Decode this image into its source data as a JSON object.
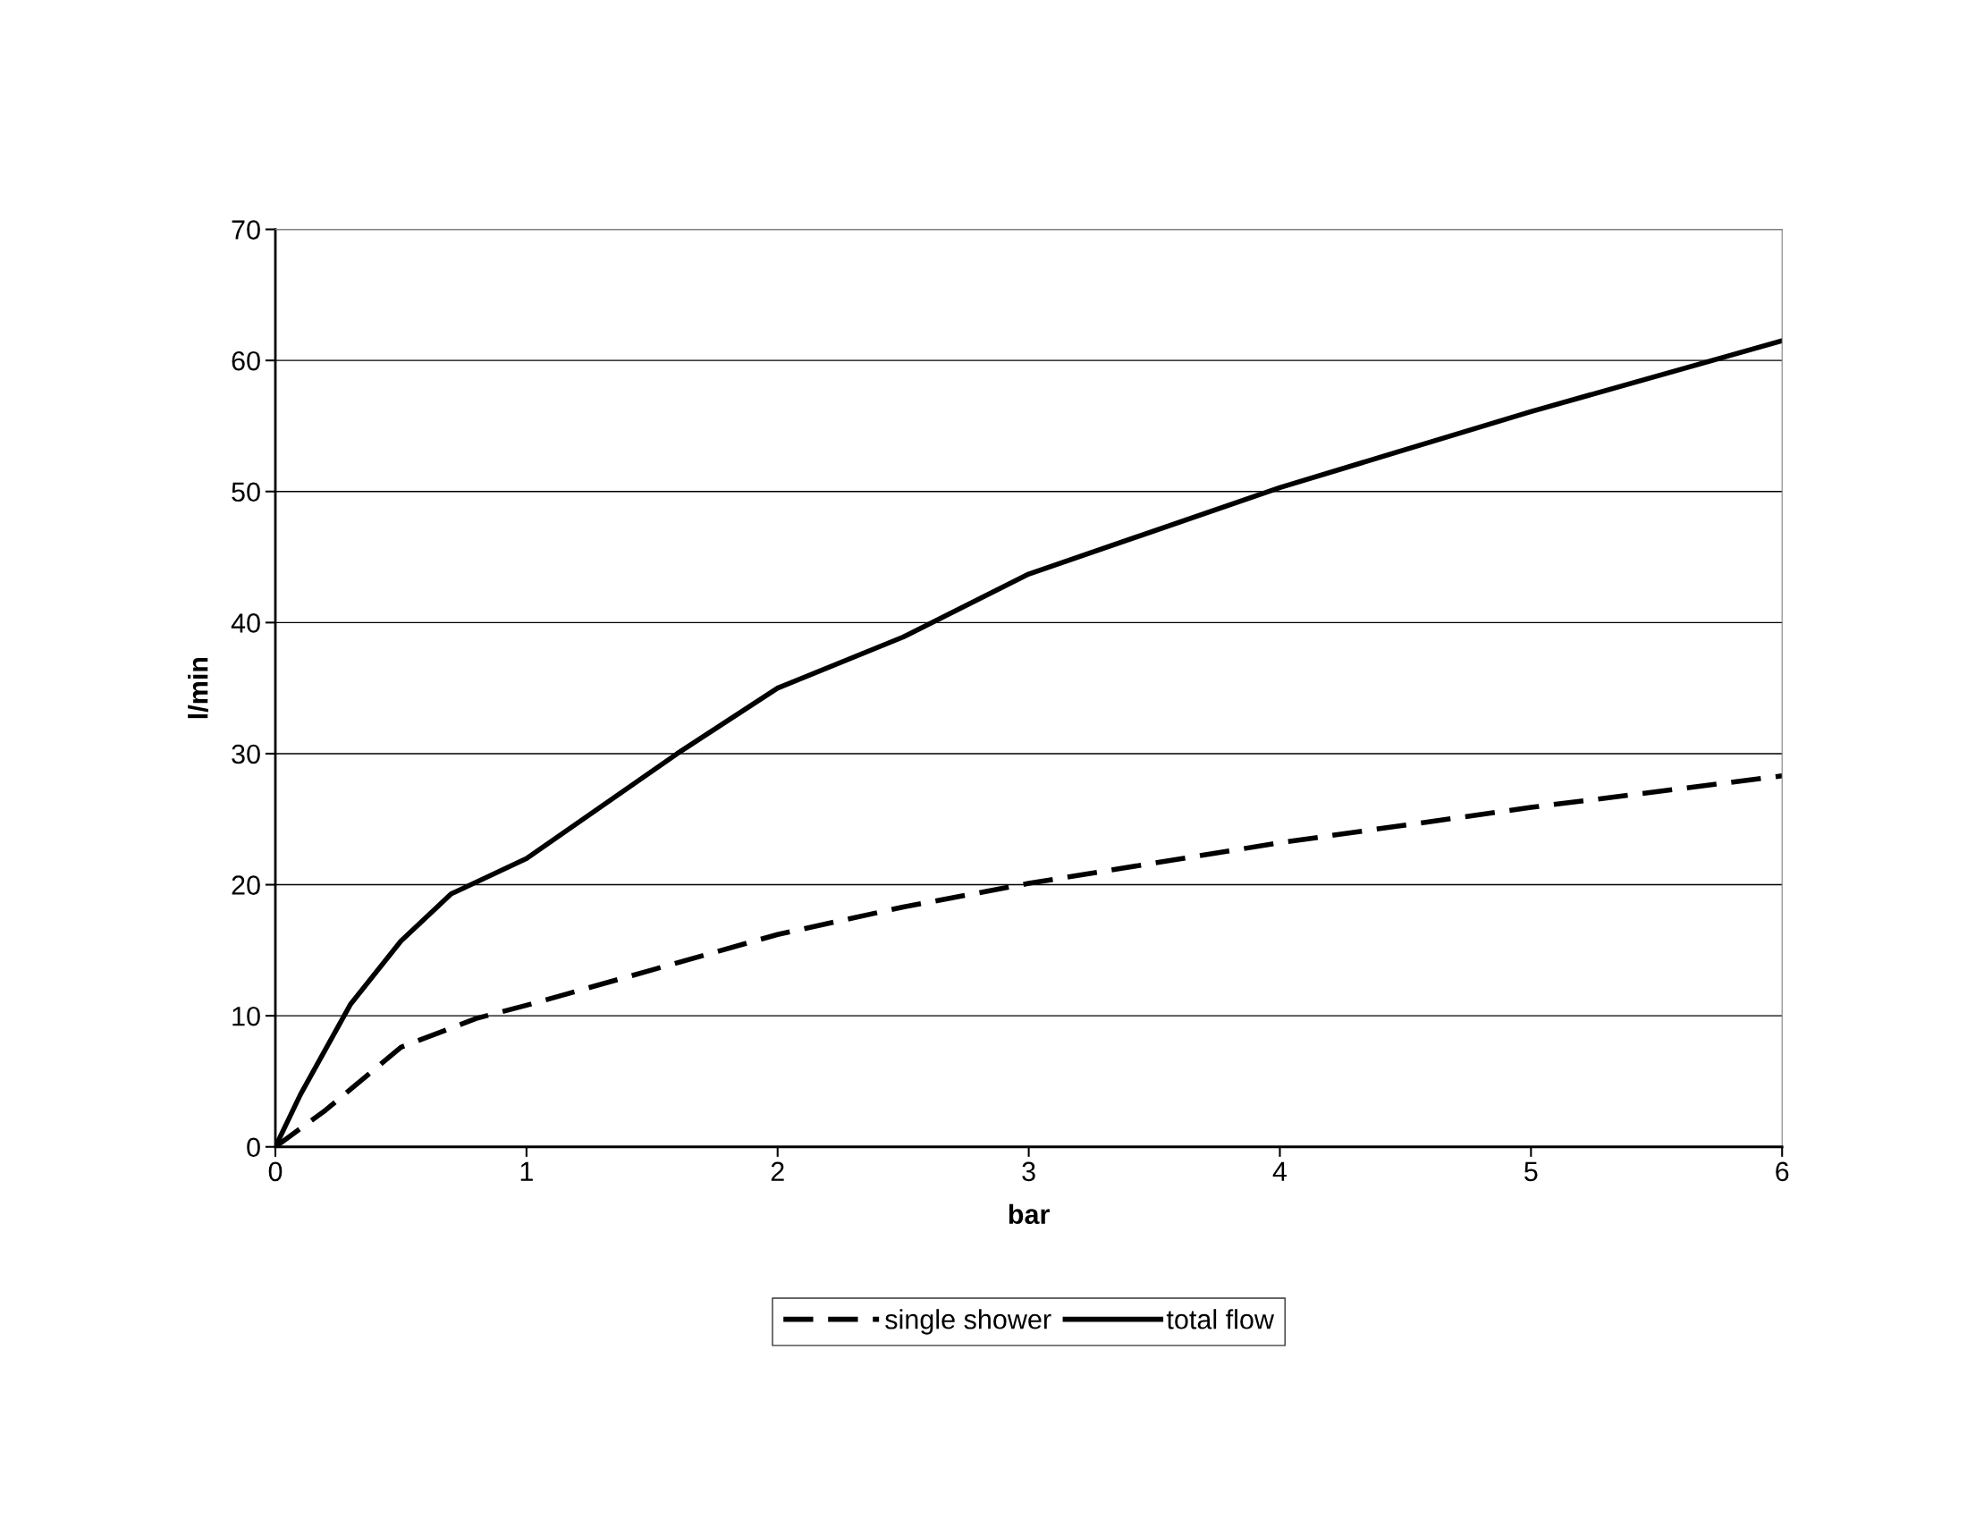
{
  "chart_data": {
    "type": "line",
    "xlabel": "bar",
    "ylabel": "l/min",
    "xlim": [
      0,
      6
    ],
    "ylim": [
      0,
      70
    ],
    "xticks": [
      0,
      1,
      2,
      3,
      4,
      5,
      6
    ],
    "yticks": [
      0,
      10,
      20,
      30,
      40,
      50,
      60,
      70
    ],
    "grid": "y",
    "legend": "bottom",
    "marker": "none",
    "series": [
      {
        "name": "single shower",
        "color": "#000000",
        "line_style": "dashed",
        "x": [
          0,
          0.2,
          0.5,
          0.8,
          1,
          1.5,
          2,
          2.5,
          3,
          4,
          5,
          6
        ],
        "values": [
          0,
          2.8,
          7.6,
          9.8,
          10.8,
          13.5,
          16.2,
          18.3,
          20.1,
          23.2,
          25.9,
          28.3
        ]
      },
      {
        "name": "total flow",
        "color": "#000000",
        "line_style": "solid",
        "x": [
          0,
          0.1,
          0.3,
          0.5,
          0.7,
          1,
          1.6,
          2,
          2.5,
          3,
          4,
          5,
          6
        ],
        "values": [
          0,
          4,
          10.9,
          15.7,
          19.3,
          22,
          30,
          35,
          38.9,
          43.7,
          50.3,
          56.1,
          61.5
        ]
      }
    ]
  }
}
